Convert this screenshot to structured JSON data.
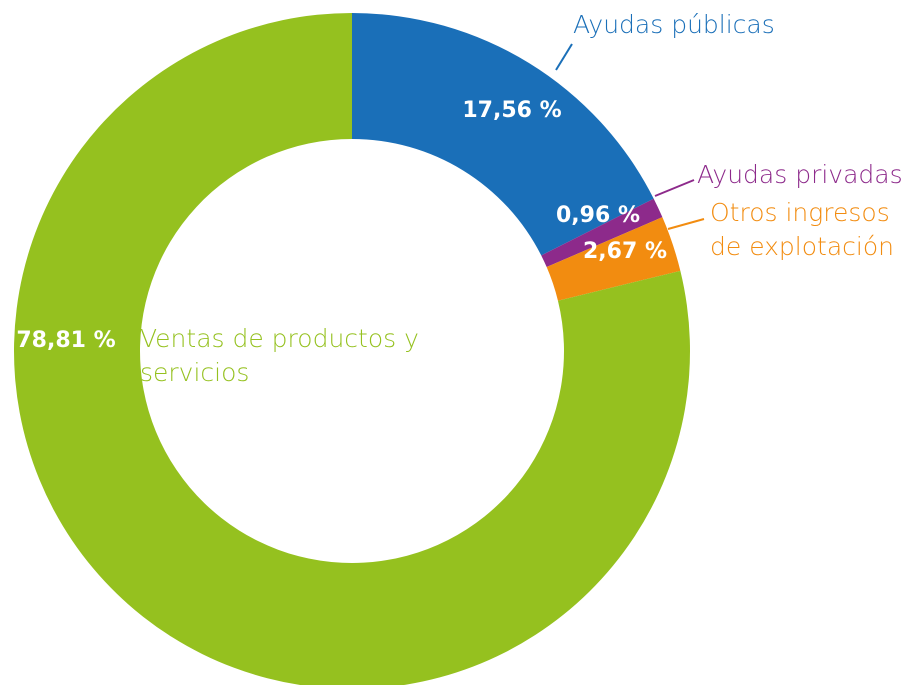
{
  "chart_data": {
    "type": "donut",
    "categories": [
      "Ayudas públicas",
      "Ayudas privadas",
      "Otros ingresos de explotación",
      "Ventas de productos y servicios"
    ],
    "values": [
      17.56,
      0.96,
      2.67,
      78.81
    ],
    "value_labels": [
      "17,56 %",
      "0,96 %",
      "2,67 %",
      "78,81 %"
    ],
    "colors": [
      "#1a6fb8",
      "#8d2a8b",
      "#f28c10",
      "#95c11f"
    ]
  }
}
